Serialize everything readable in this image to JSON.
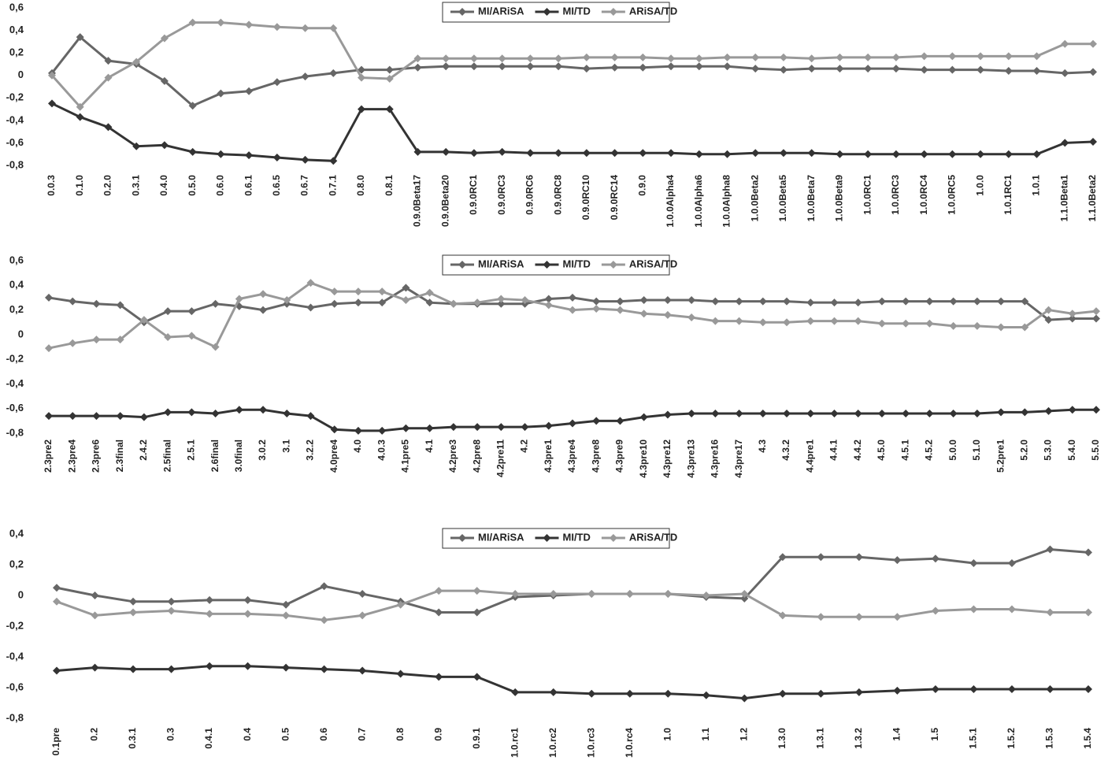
{
  "chart_data": [
    {
      "type": "line",
      "legend": "top",
      "categories": [
        "0.0.3",
        "0.1.0",
        "0.2.0",
        "0.3.1",
        "0.4.0",
        "0.5.0",
        "0.6.0",
        "0.6.1",
        "0.6.5",
        "0.6.7",
        "0.7.1",
        "0.8.0",
        "0.8.1",
        "0.9.0Beta17",
        "0.9.0Beta20",
        "0.9.0RC1",
        "0.9.0RC3",
        "0.9.0RC6",
        "0.9.0RC8",
        "0.9.0RC10",
        "0.9.0RC14",
        "0.9.0",
        "1.0.0Alpha4",
        "1.0.0Alpha6",
        "1.0.0Alpha8",
        "1.0.0Beta2",
        "1.0.0Beta5",
        "1.0.0Beta7",
        "1.0.0Beta9",
        "1.0.0RC1",
        "1.0.0RC3",
        "1.0.0RC4",
        "1.0.0RC5",
        "1.0.0",
        "1.0.1RC1",
        "1.0.1",
        "1.1.0Beta1",
        "1.1.0Beta2"
      ],
      "series": [
        {
          "name": "MI/ARiSA",
          "color": "#666666",
          "values": [
            0.02,
            0.34,
            0.13,
            0.1,
            -0.05,
            -0.27,
            -0.16,
            -0.14,
            -0.06,
            -0.01,
            0.02,
            0.05,
            0.05,
            0.07,
            0.08,
            0.08,
            0.08,
            0.08,
            0.08,
            0.06,
            0.07,
            0.07,
            0.08,
            0.08,
            0.08,
            0.06,
            0.05,
            0.06,
            0.06,
            0.06,
            0.06,
            0.05,
            0.05,
            0.05,
            0.04,
            0.04,
            0.02,
            0.03
          ]
        },
        {
          "name": "MI/TD",
          "color": "#333333",
          "values": [
            -0.25,
            -0.37,
            -0.46,
            -0.63,
            -0.62,
            -0.68,
            -0.7,
            -0.71,
            -0.73,
            -0.75,
            -0.76,
            -0.3,
            -0.3,
            -0.68,
            -0.68,
            -0.69,
            -0.68,
            -0.69,
            -0.69,
            -0.69,
            -0.69,
            -0.69,
            -0.69,
            -0.7,
            -0.7,
            -0.69,
            -0.69,
            -0.69,
            -0.7,
            -0.7,
            -0.7,
            -0.7,
            -0.7,
            -0.7,
            -0.7,
            -0.7,
            -0.6,
            -0.59
          ]
        },
        {
          "name": "ARiSA/TD",
          "color": "#999999",
          "values": [
            0.0,
            -0.28,
            -0.02,
            0.12,
            0.33,
            0.47,
            0.47,
            0.45,
            0.43,
            0.42,
            0.42,
            -0.02,
            -0.03,
            0.15,
            0.15,
            0.15,
            0.15,
            0.15,
            0.15,
            0.16,
            0.16,
            0.16,
            0.15,
            0.15,
            0.16,
            0.16,
            0.16,
            0.15,
            0.16,
            0.16,
            0.16,
            0.17,
            0.17,
            0.17,
            0.17,
            0.17,
            0.28,
            0.28
          ]
        }
      ],
      "ylim": [
        -0.8,
        0.6
      ],
      "yticks": [
        {
          "value": -0.8,
          "label": "-0,8"
        },
        {
          "value": -0.6,
          "label": "-0,6"
        },
        {
          "value": -0.4,
          "label": "-0,4"
        },
        {
          "value": -0.2,
          "label": "-0,2"
        },
        0,
        {
          "value": 0.2,
          "label": "0,2"
        },
        {
          "value": 0.4,
          "label": "0,4"
        },
        {
          "value": 0.6,
          "label": "0,6"
        }
      ],
      "grid": false
    },
    {
      "type": "line",
      "legend": "top",
      "categories": [
        "2.3pre2",
        "2.3pre4",
        "2.3pre6",
        "2.3final",
        "2.4.2",
        "2.5final",
        "2.5.1",
        "2.6final",
        "3.0final",
        "3.0.2",
        "3.1",
        "3.2.2",
        "4.0pre4",
        "4.0",
        "4.0.3",
        "4.1pre5",
        "4.1",
        "4.2pre3",
        "4.2pre8",
        "4.2pre11",
        "4.2",
        "4.3pre1",
        "4.3pre4",
        "4.3pre8",
        "4.3pre9",
        "4.3pre10",
        "4.3pre12",
        "4.3pre13",
        "4.3pre16",
        "4.3pre17",
        "4.3",
        "4.3.2",
        "4.4pre1",
        "4.4.1",
        "4.4.2",
        "4.5.0",
        "4.5.1",
        "4.5.2",
        "5.0.0",
        "5.1.0",
        "5.2pre1",
        "5.2.0",
        "5.3.0",
        "5.4.0",
        "5.5.0"
      ],
      "series": [
        {
          "name": "MI/ARiSA",
          "color": "#666666",
          "values": [
            0.3,
            0.27,
            0.25,
            0.24,
            0.1,
            0.19,
            0.19,
            0.25,
            0.23,
            0.2,
            0.25,
            0.22,
            0.25,
            0.26,
            0.26,
            0.38,
            0.26,
            0.25,
            0.25,
            0.25,
            0.25,
            0.29,
            0.3,
            0.27,
            0.27,
            0.28,
            0.28,
            0.28,
            0.27,
            0.27,
            0.27,
            0.27,
            0.26,
            0.26,
            0.26,
            0.27,
            0.27,
            0.27,
            0.27,
            0.27,
            0.27,
            0.27,
            0.12,
            0.13,
            0.13
          ]
        },
        {
          "name": "MI/TD",
          "color": "#333333",
          "values": [
            -0.66,
            -0.66,
            -0.66,
            -0.66,
            -0.67,
            -0.63,
            -0.63,
            -0.64,
            -0.61,
            -0.61,
            -0.64,
            -0.66,
            -0.77,
            -0.78,
            -0.78,
            -0.76,
            -0.76,
            -0.75,
            -0.75,
            -0.75,
            -0.75,
            -0.74,
            -0.72,
            -0.7,
            -0.7,
            -0.67,
            -0.65,
            -0.64,
            -0.64,
            -0.64,
            -0.64,
            -0.64,
            -0.64,
            -0.64,
            -0.64,
            -0.64,
            -0.64,
            -0.64,
            -0.64,
            -0.64,
            -0.63,
            -0.63,
            -0.62,
            -0.61,
            -0.61
          ]
        },
        {
          "name": "ARiSA/TD",
          "color": "#999999",
          "values": [
            -0.11,
            -0.07,
            -0.04,
            -0.04,
            0.12,
            -0.02,
            -0.01,
            -0.1,
            0.29,
            0.33,
            0.28,
            0.42,
            0.35,
            0.35,
            0.35,
            0.28,
            0.34,
            0.25,
            0.26,
            0.29,
            0.28,
            0.24,
            0.2,
            0.21,
            0.2,
            0.17,
            0.16,
            0.14,
            0.11,
            0.11,
            0.1,
            0.1,
            0.11,
            0.11,
            0.11,
            0.09,
            0.09,
            0.09,
            0.07,
            0.07,
            0.06,
            0.06,
            0.2,
            0.17,
            0.19
          ]
        }
      ],
      "ylim": [
        -0.8,
        0.6
      ],
      "yticks": [
        {
          "value": -0.8,
          "label": "-0,8"
        },
        {
          "value": -0.6,
          "label": "-0,6"
        },
        {
          "value": -0.4,
          "label": "-0,4"
        },
        {
          "value": -0.2,
          "label": "-0,2"
        },
        0,
        {
          "value": 0.2,
          "label": "0,2"
        },
        {
          "value": 0.4,
          "label": "0,4"
        },
        {
          "value": 0.6,
          "label": "0,6"
        }
      ],
      "grid": false
    },
    {
      "type": "line",
      "legend": "top",
      "categories": [
        "0.1pre",
        "0.2",
        "0.3.1",
        "0.3",
        "0.4.1",
        "0.4",
        "0.5",
        "0.6",
        "0.7",
        "0.8",
        "0.9",
        "0.9.1",
        "1.0.rc1",
        "1.0.rc2",
        "1.0.rc3",
        "1.0.rc4",
        "1.0",
        "1.1",
        "1.2",
        "1.3.0",
        "1.3.1",
        "1.3.2",
        "1.4",
        "1.5",
        "1.5.1",
        "1.5.2",
        "1.5.3",
        "1.5.4"
      ],
      "series": [
        {
          "name": "MI/ARiSA",
          "color": "#666666",
          "values": [
            0.05,
            0.0,
            -0.04,
            -0.04,
            -0.03,
            -0.03,
            -0.06,
            0.06,
            0.01,
            -0.04,
            -0.11,
            -0.11,
            -0.01,
            0.0,
            0.01,
            0.01,
            0.01,
            -0.01,
            -0.02,
            0.25,
            0.25,
            0.25,
            0.23,
            0.24,
            0.21,
            0.21,
            0.3,
            0.28
          ]
        },
        {
          "name": "MI/TD",
          "color": "#333333",
          "values": [
            -0.49,
            -0.47,
            -0.48,
            -0.48,
            -0.46,
            -0.46,
            -0.47,
            -0.48,
            -0.49,
            -0.51,
            -0.53,
            -0.53,
            -0.63,
            -0.63,
            -0.64,
            -0.64,
            -0.64,
            -0.65,
            -0.67,
            -0.64,
            -0.64,
            -0.63,
            -0.62,
            -0.61,
            -0.61,
            -0.61,
            -0.61,
            -0.61
          ]
        },
        {
          "name": "ARiSA/TD",
          "color": "#999999",
          "values": [
            -0.04,
            -0.13,
            -0.11,
            -0.1,
            -0.12,
            -0.12,
            -0.13,
            -0.16,
            -0.13,
            -0.06,
            0.03,
            0.03,
            0.01,
            0.01,
            0.01,
            0.01,
            0.01,
            0.0,
            0.01,
            -0.13,
            -0.14,
            -0.14,
            -0.14,
            -0.1,
            -0.09,
            -0.09,
            -0.11,
            -0.11
          ]
        }
      ],
      "ylim": [
        -0.8,
        0.4
      ],
      "yticks": [
        {
          "value": -0.8,
          "label": "-0,8"
        },
        {
          "value": -0.6,
          "label": "-0,6"
        },
        {
          "value": -0.4,
          "label": "-0,4"
        },
        {
          "value": -0.2,
          "label": "-0,2"
        },
        0,
        {
          "value": 0.2,
          "label": "0,2"
        },
        {
          "value": 0.4,
          "label": "0,4"
        }
      ],
      "grid": false
    }
  ]
}
